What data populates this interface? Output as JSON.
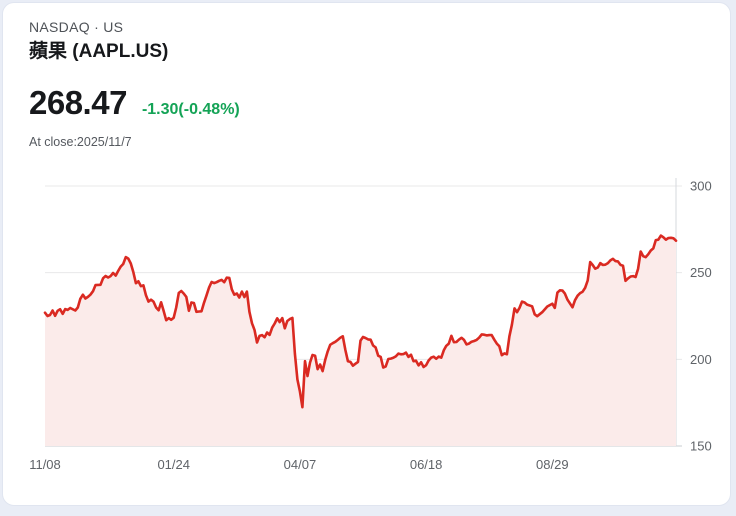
{
  "header": {
    "exchange": "NASDAQ · US",
    "name": "蘋果 (AAPL.US)",
    "price": "268.47",
    "change": "-1.30(-0.48%)",
    "as_of": "At close:2025/11/7"
  },
  "colors": {
    "accent_red_line": "#da2a22",
    "area_fill": "#fbebea",
    "change_green": "#14a356",
    "gridline": "#e8e8ea",
    "axis_bottom": "#c9ccd1",
    "axis_right": "#d6d9de",
    "tick_label": "#5f6368",
    "card_border": "#e0e5f0",
    "page_background": "#e9edf6"
  },
  "chart_data": {
    "type": "area",
    "title": "蘋果 (AAPL.US) 1-year price",
    "xlabel": "",
    "ylabel": "",
    "ylim": [
      150,
      300
    ],
    "t_max": 250,
    "y_ticks": [
      300,
      250,
      200,
      150
    ],
    "x_ticks": [
      {
        "label": "11/08",
        "t": 0
      },
      {
        "label": "01/24",
        "t": 51
      },
      {
        "label": "04/07",
        "t": 101
      },
      {
        "label": "06/18",
        "t": 151
      },
      {
        "label": "08/29",
        "t": 201
      }
    ],
    "grid": true,
    "legend": "none",
    "points": [
      [
        0,
        226.9
      ],
      [
        1,
        225.0
      ],
      [
        2,
        225.6
      ],
      [
        3,
        228.2
      ],
      [
        4,
        225.1
      ],
      [
        5,
        228.0
      ],
      [
        6,
        228.9
      ],
      [
        7,
        226.2
      ],
      [
        8,
        229.0
      ],
      [
        9,
        228.5
      ],
      [
        10,
        229.6
      ],
      [
        12,
        228.2
      ],
      [
        13,
        229.9
      ],
      [
        14,
        234.9
      ],
      [
        15,
        237.3
      ],
      [
        16,
        235.1
      ],
      [
        17,
        236.0
      ],
      [
        18,
        237.3
      ],
      [
        19,
        239.3
      ],
      [
        20,
        242.8
      ],
      [
        22,
        243.0
      ],
      [
        23,
        246.8
      ],
      [
        24,
        248.1
      ],
      [
        25,
        247.2
      ],
      [
        26,
        248.0
      ],
      [
        27,
        249.8
      ],
      [
        28,
        248.3
      ],
      [
        29,
        251.0
      ],
      [
        30,
        253.5
      ],
      [
        31,
        255.0
      ],
      [
        32,
        259.0
      ],
      [
        33,
        258.1
      ],
      [
        34,
        255.3
      ],
      [
        35,
        250.4
      ],
      [
        36,
        243.9
      ],
      [
        37,
        245.0
      ],
      [
        38,
        242.2
      ],
      [
        39,
        242.7
      ],
      [
        40,
        236.9
      ],
      [
        41,
        233.3
      ],
      [
        42,
        234.4
      ],
      [
        43,
        233.3
      ],
      [
        44,
        229.9
      ],
      [
        45,
        228.3
      ],
      [
        46,
        232.9
      ],
      [
        47,
        228.0
      ],
      [
        48,
        222.6
      ],
      [
        49,
        223.8
      ],
      [
        50,
        222.8
      ],
      [
        51,
        224.0
      ],
      [
        52,
        229.9
      ],
      [
        53,
        238.3
      ],
      [
        54,
        239.4
      ],
      [
        55,
        237.9
      ],
      [
        56,
        236.0
      ],
      [
        57,
        228.0
      ],
      [
        58,
        232.8
      ],
      [
        59,
        232.5
      ],
      [
        60,
        227.4
      ],
      [
        61,
        227.6
      ],
      [
        62,
        227.7
      ],
      [
        63,
        232.6
      ],
      [
        64,
        236.9
      ],
      [
        65,
        241.5
      ],
      [
        66,
        244.6
      ],
      [
        67,
        244.0
      ],
      [
        68,
        244.5
      ],
      [
        69,
        245.3
      ],
      [
        70,
        245.8
      ],
      [
        71,
        244.5
      ],
      [
        72,
        247.1
      ],
      [
        73,
        247.0
      ],
      [
        74,
        240.4
      ],
      [
        75,
        237.3
      ],
      [
        76,
        238.0
      ],
      [
        77,
        235.7
      ],
      [
        78,
        239.1
      ],
      [
        79,
        235.9
      ],
      [
        80,
        239.1
      ],
      [
        81,
        227.5
      ],
      [
        82,
        220.8
      ],
      [
        83,
        217.0
      ],
      [
        84,
        209.7
      ],
      [
        85,
        213.5
      ],
      [
        86,
        214.0
      ],
      [
        87,
        212.7
      ],
      [
        88,
        215.5
      ],
      [
        89,
        214.1
      ],
      [
        90,
        218.3
      ],
      [
        91,
        220.7
      ],
      [
        92,
        223.7
      ],
      [
        93,
        221.5
      ],
      [
        94,
        223.8
      ],
      [
        95,
        217.9
      ],
      [
        96,
        222.1
      ],
      [
        97,
        223.2
      ],
      [
        98,
        223.9
      ],
      [
        99,
        203.2
      ],
      [
        100,
        188.4
      ],
      [
        101,
        181.5
      ],
      [
        102,
        172.4
      ],
      [
        103,
        198.9
      ],
      [
        104,
        190.4
      ],
      [
        105,
        198.1
      ],
      [
        106,
        202.5
      ],
      [
        107,
        202.1
      ],
      [
        108,
        194.3
      ],
      [
        109,
        197.0
      ],
      [
        110,
        193.2
      ],
      [
        111,
        199.7
      ],
      [
        112,
        204.6
      ],
      [
        113,
        208.4
      ],
      [
        114,
        209.3
      ],
      [
        115,
        210.1
      ],
      [
        116,
        211.2
      ],
      [
        117,
        212.5
      ],
      [
        118,
        213.3
      ],
      [
        119,
        205.3
      ],
      [
        120,
        198.9
      ],
      [
        121,
        198.5
      ],
      [
        122,
        196.3
      ],
      [
        123,
        197.5
      ],
      [
        124,
        198.5
      ],
      [
        125,
        210.8
      ],
      [
        126,
        212.9
      ],
      [
        127,
        212.3
      ],
      [
        128,
        211.5
      ],
      [
        129,
        211.3
      ],
      [
        130,
        208.0
      ],
      [
        131,
        206.9
      ],
      [
        132,
        202.1
      ],
      [
        133,
        201.4
      ],
      [
        134,
        195.3
      ],
      [
        135,
        195.9
      ],
      [
        136,
        200.2
      ],
      [
        137,
        200.4
      ],
      [
        138,
        200.9
      ],
      [
        139,
        201.7
      ],
      [
        140,
        203.3
      ],
      [
        141,
        202.9
      ],
      [
        142,
        203.0
      ],
      [
        143,
        203.9
      ],
      [
        144,
        201.4
      ],
      [
        145,
        202.7
      ],
      [
        146,
        198.9
      ],
      [
        147,
        199.2
      ],
      [
        148,
        196.5
      ],
      [
        149,
        198.3
      ],
      [
        150,
        195.6
      ],
      [
        151,
        196.6
      ],
      [
        152,
        199.3
      ],
      [
        153,
        201.0
      ],
      [
        154,
        201.5
      ],
      [
        155,
        200.3
      ],
      [
        156,
        201.6
      ],
      [
        157,
        201.0
      ],
      [
        158,
        205.2
      ],
      [
        159,
        207.8
      ],
      [
        160,
        209.1
      ],
      [
        161,
        213.6
      ],
      [
        162,
        209.9
      ],
      [
        163,
        210.0
      ],
      [
        164,
        211.3
      ],
      [
        165,
        212.4
      ],
      [
        166,
        211.2
      ],
      [
        167,
        208.6
      ],
      [
        168,
        209.1
      ],
      [
        169,
        210.2
      ],
      [
        170,
        210.6
      ],
      [
        171,
        211.2
      ],
      [
        172,
        212.5
      ],
      [
        173,
        214.4
      ],
      [
        174,
        214.2
      ],
      [
        175,
        213.8
      ],
      [
        176,
        214.0
      ],
      [
        177,
        214.0
      ],
      [
        178,
        211.3
      ],
      [
        179,
        209.1
      ],
      [
        180,
        207.6
      ],
      [
        181,
        202.4
      ],
      [
        182,
        203.4
      ],
      [
        183,
        202.9
      ],
      [
        184,
        213.3
      ],
      [
        185,
        220.0
      ],
      [
        186,
        229.4
      ],
      [
        187,
        227.2
      ],
      [
        188,
        229.7
      ],
      [
        189,
        233.3
      ],
      [
        190,
        232.8
      ],
      [
        191,
        231.6
      ],
      [
        193,
        230.6
      ],
      [
        194,
        226.0
      ],
      [
        195,
        224.9
      ],
      [
        197,
        227.2
      ],
      [
        199,
        230.5
      ],
      [
        201,
        232.1
      ],
      [
        202,
        229.7
      ],
      [
        203,
        238.5
      ],
      [
        204,
        239.8
      ],
      [
        205,
        239.7
      ],
      [
        206,
        237.9
      ],
      [
        207,
        234.4
      ],
      [
        209,
        230.0
      ],
      [
        210,
        234.1
      ],
      [
        211,
        236.7
      ],
      [
        212,
        238.2
      ],
      [
        213,
        239.0
      ],
      [
        214,
        241.2
      ],
      [
        215,
        245.5
      ],
      [
        216,
        256.1
      ],
      [
        217,
        254.4
      ],
      [
        218,
        252.3
      ],
      [
        219,
        253.0
      ],
      [
        220,
        255.5
      ],
      [
        221,
        254.5
      ],
      [
        222,
        254.6
      ],
      [
        223,
        255.5
      ],
      [
        224,
        257.1
      ],
      [
        225,
        258.0
      ],
      [
        226,
        256.7
      ],
      [
        227,
        256.5
      ],
      [
        228,
        254.5
      ],
      [
        229,
        254.0
      ],
      [
        230,
        245.3
      ],
      [
        231,
        246.7
      ],
      [
        232,
        247.8
      ],
      [
        233,
        248.0
      ],
      [
        234,
        247.5
      ],
      [
        235,
        252.3
      ],
      [
        236,
        262.2
      ],
      [
        237,
        259.5
      ],
      [
        238,
        258.9
      ],
      [
        239,
        260.6
      ],
      [
        240,
        262.8
      ],
      [
        241,
        264.0
      ],
      [
        242,
        268.8
      ],
      [
        243,
        269.0
      ],
      [
        244,
        271.4
      ],
      [
        245,
        270.4
      ],
      [
        246,
        269.0
      ],
      [
        247,
        270.0
      ],
      [
        248,
        270.1
      ],
      [
        249,
        269.8
      ],
      [
        250,
        268.47
      ]
    ]
  }
}
